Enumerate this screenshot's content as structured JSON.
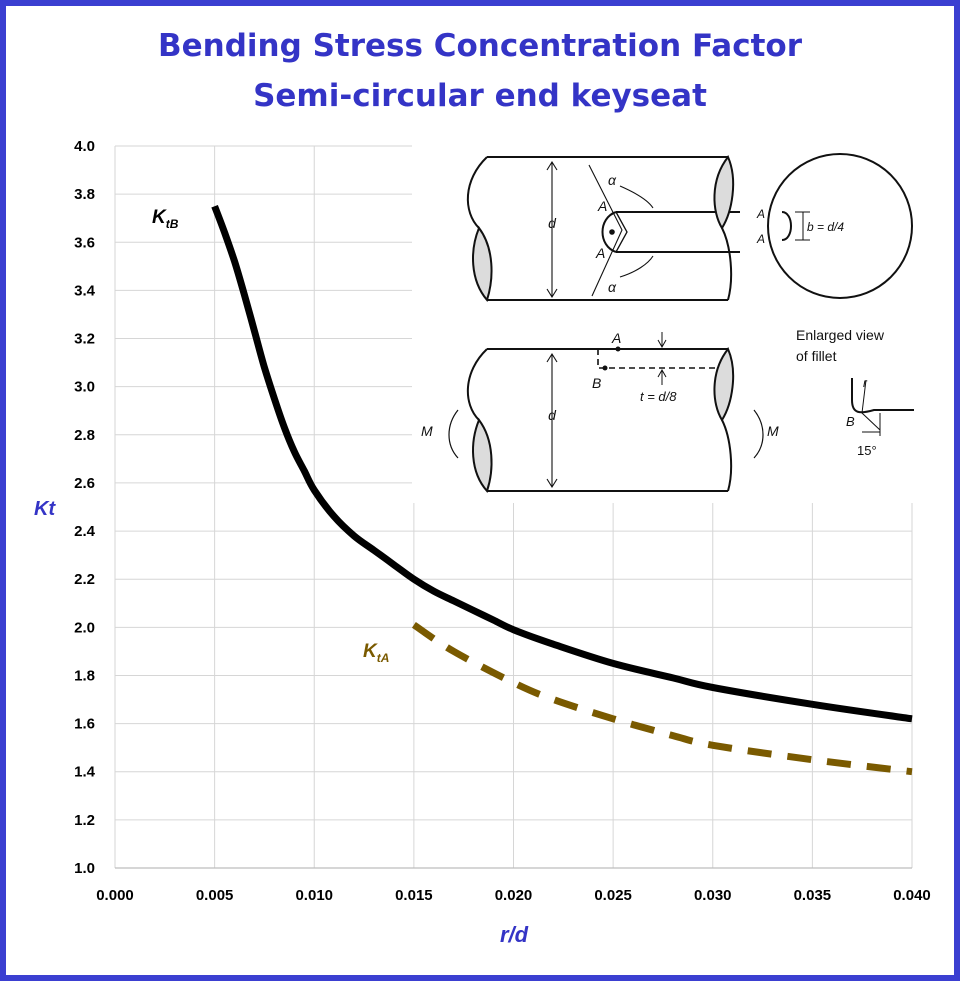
{
  "title_line1": "Bending Stress Concentration Factor",
  "title_line2": "Semi-circular end keyseat",
  "chart_data": {
    "type": "line",
    "xlabel": "r/d",
    "ylabel": "Kt",
    "xlim": [
      0.0,
      0.04
    ],
    "ylim": [
      1.0,
      4.0
    ],
    "x_ticks": [
      "0.000",
      "0.005",
      "0.010",
      "0.015",
      "0.020",
      "0.025",
      "0.030",
      "0.035",
      "0.040"
    ],
    "y_ticks": [
      "1.0",
      "1.2",
      "1.4",
      "1.6",
      "1.8",
      "2.0",
      "2.2",
      "2.4",
      "2.6",
      "2.8",
      "3.0",
      "3.2",
      "3.4",
      "3.6",
      "3.8",
      "4.0"
    ],
    "grid": true,
    "series": [
      {
        "name": "KtB",
        "label_main": "K",
        "label_sub": "tB",
        "color": "#000000",
        "style": "solid",
        "x": [
          0.005,
          0.0055,
          0.006,
          0.0065,
          0.007,
          0.0075,
          0.008,
          0.0085,
          0.009,
          0.0095,
          0.01,
          0.011,
          0.012,
          0.013,
          0.014,
          0.015,
          0.016,
          0.017,
          0.018,
          0.019,
          0.02,
          0.022,
          0.025,
          0.028,
          0.03,
          0.035,
          0.04
        ],
        "values": [
          3.75,
          3.64,
          3.52,
          3.38,
          3.23,
          3.08,
          2.95,
          2.83,
          2.73,
          2.65,
          2.57,
          2.46,
          2.38,
          2.32,
          2.26,
          2.2,
          2.15,
          2.11,
          2.07,
          2.03,
          1.99,
          1.93,
          1.85,
          1.79,
          1.75,
          1.68,
          1.62
        ]
      },
      {
        "name": "KtA",
        "label_main": "K",
        "label_sub": "tA",
        "color": "#7a5a00",
        "style": "dashed",
        "x": [
          0.015,
          0.017,
          0.02,
          0.022,
          0.025,
          0.028,
          0.03,
          0.035,
          0.04
        ],
        "values": [
          2.01,
          1.9,
          1.77,
          1.7,
          1.62,
          1.55,
          1.51,
          1.45,
          1.4
        ]
      }
    ]
  },
  "inset": {
    "labels": {
      "alpha": "α",
      "A": "A",
      "B": "B",
      "d": "d",
      "b_eq": "b = d/4",
      "t_eq": "t = d/8",
      "M": "M",
      "enlarged_line1": "Enlarged view",
      "enlarged_line2": "of fillet",
      "r": "r",
      "deg15": "15°"
    }
  }
}
